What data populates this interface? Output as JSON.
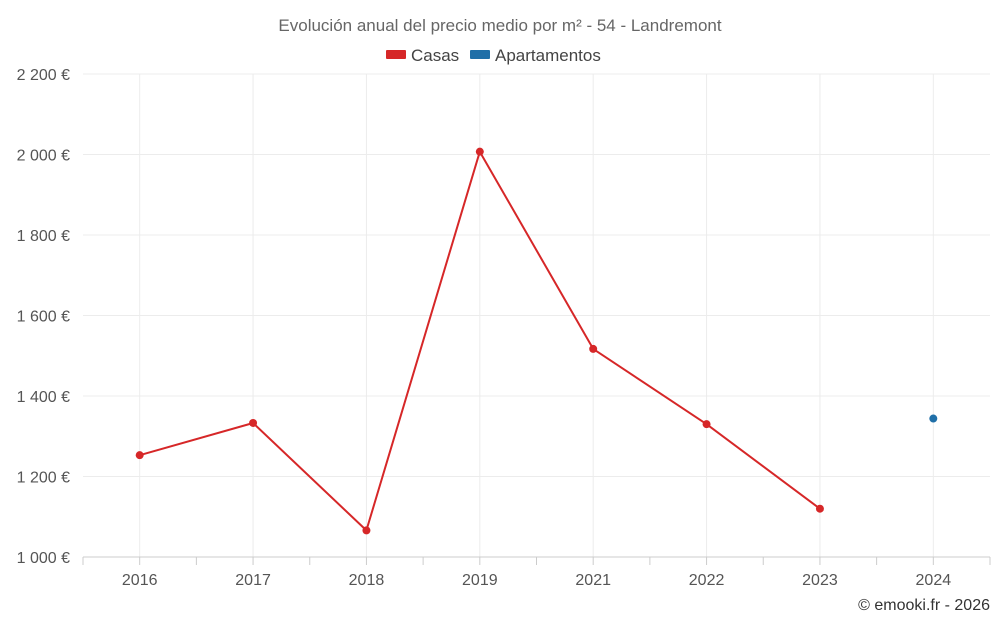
{
  "chart_data": {
    "type": "line",
    "title": "Evolución anual del precio medio por m² - 54 - Landremont",
    "categories": [
      "2016",
      "2017",
      "2018",
      "2019",
      "2021",
      "2022",
      "2023",
      "2024"
    ],
    "ylim": [
      1000,
      2200
    ],
    "yticks": [
      1000,
      1200,
      1400,
      1600,
      1800,
      2000,
      2200
    ],
    "ytick_labels": [
      "1 000 €",
      "1 200 €",
      "1 400 €",
      "1 600 €",
      "1 800 €",
      "2 000 €",
      "2 200 €"
    ],
    "grid": true,
    "legend_position": "top-center",
    "series": [
      {
        "name": "Casas",
        "color": "#d62728",
        "values": [
          1253,
          1333,
          1066,
          2007,
          1517,
          1330,
          1120,
          null
        ]
      },
      {
        "name": "Apartamentos",
        "color": "#1f6fa8",
        "values": [
          null,
          null,
          null,
          null,
          null,
          null,
          null,
          1344
        ]
      }
    ]
  },
  "credit": "© emooki.fr - 2026"
}
